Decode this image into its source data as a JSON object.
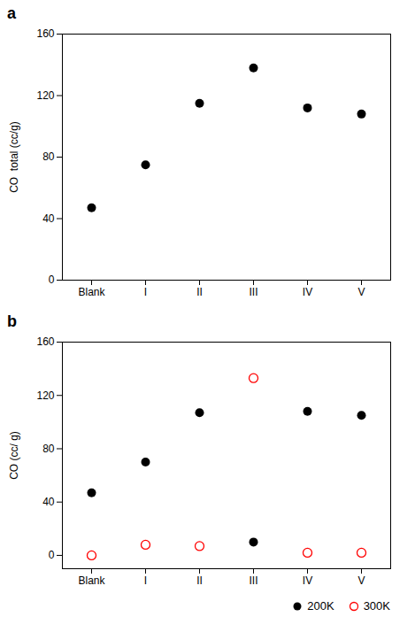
{
  "chart_data": [
    {
      "type": "scatter",
      "title": "a",
      "categories": [
        "Blank",
        "I",
        "II",
        "III",
        "IV",
        "V"
      ],
      "values": [
        47,
        75,
        115,
        138,
        112,
        108
      ],
      "color": "#000000",
      "ylabel": "CO  total (cc/g)",
      "ylim": [
        0,
        160
      ],
      "yticks": [
        0,
        40,
        80,
        120,
        160
      ]
    },
    {
      "type": "scatter",
      "title": "b",
      "categories": [
        "Blank",
        "I",
        "II",
        "III",
        "IV",
        "V"
      ],
      "series": [
        {
          "name": "200K",
          "color": "#000000",
          "marker": "circle",
          "values": [
            47,
            70,
            107,
            10,
            108,
            105
          ]
        },
        {
          "name": "300K",
          "color": "#ff0000",
          "marker": "open_circle",
          "values": [
            0,
            8,
            7,
            133,
            2,
            2
          ]
        }
      ],
      "ylabel": "CO (cc/ g)",
      "ylim": [
        -10,
        160
      ],
      "yticks": [
        0,
        40,
        80,
        120,
        160
      ],
      "legend": "lower right"
    }
  ]
}
